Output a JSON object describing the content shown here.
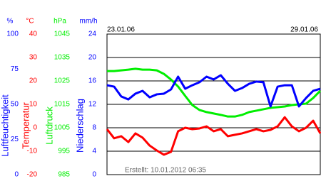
{
  "chart_data": {
    "type": "line",
    "start_date": "23.01.06",
    "end_date": "29.01.06",
    "footer": "Erstellt: 10.01.2012 06:35",
    "grid": true,
    "axes": [
      {
        "unit": "%",
        "label": "Luftfeuchtigkeit",
        "color": "#0000ff",
        "ylim": [
          0,
          100
        ],
        "yticks": [
          0,
          25,
          50,
          75,
          100
        ],
        "values": [
          63.6,
          62.6,
          55.6,
          53.5,
          57.6,
          59.6,
          55.0,
          57.1,
          57.6,
          60.6,
          69.7,
          61.1,
          63.6,
          65.7,
          69.7,
          67.7,
          70.7,
          64.6,
          59.6,
          61.6,
          64.6,
          66.2,
          65.7,
          48.5,
          62.6,
          63.6,
          63.6,
          48.5,
          54.5,
          59.6,
          61.1
        ]
      },
      {
        "unit": "°C",
        "label": "Temperatur",
        "color": "#ff0000",
        "ylim": [
          -20,
          40
        ],
        "yticks": [
          -20,
          -10,
          0,
          10,
          20,
          30,
          40
        ],
        "values": [
          -0.6,
          -4.5,
          -3.6,
          -6.1,
          -2.4,
          -4.2,
          -7.6,
          -9.7,
          -11.5,
          -10.3,
          -1.5,
          0.0,
          -0.6,
          -0.3,
          0.6,
          -1.5,
          -0.6,
          -3.6,
          -3.0,
          -2.4,
          -1.5,
          -0.6,
          -1.5,
          -0.9,
          0.6,
          4.5,
          0.6,
          -1.5,
          0.0,
          3.0,
          -2.4
        ]
      },
      {
        "unit": "hPa",
        "label": "Luftdruck",
        "color": "#00ee00",
        "ylim": [
          985,
          1045
        ],
        "yticks": [
          985,
          995,
          1005,
          1015,
          1025,
          1035,
          1045
        ],
        "values": [
          1029.2,
          1029.2,
          1029.5,
          1029.8,
          1030.2,
          1029.8,
          1029.8,
          1029.5,
          1028.0,
          1025.6,
          1022.6,
          1018.6,
          1014.7,
          1012.6,
          1011.7,
          1011.1,
          1010.5,
          1009.8,
          1009.8,
          1010.5,
          1011.7,
          1012.3,
          1012.9,
          1013.5,
          1013.8,
          1014.1,
          1014.7,
          1015.0,
          1015.3,
          1017.7,
          1020.8
        ]
      },
      {
        "unit": "mm/h",
        "label": "Niederschlag",
        "color": "#0000ff",
        "ylim": [
          0,
          24
        ],
        "yticks": [
          0,
          4,
          8,
          12,
          16,
          20,
          24
        ]
      }
    ]
  }
}
